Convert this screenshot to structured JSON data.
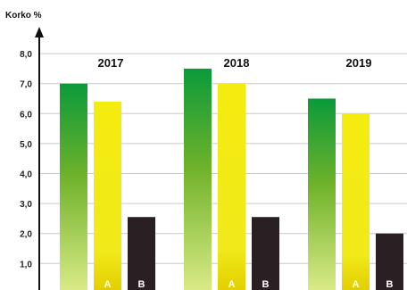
{
  "chart_data": {
    "type": "bar",
    "ylabel": "Korko %",
    "ylim": [
      0,
      8.0
    ],
    "yticks": [
      "1,0",
      "2,0",
      "3,0",
      "4,0",
      "5,0",
      "6,0",
      "7,0",
      "8,0"
    ],
    "grid": true,
    "categories": [
      "2017",
      "2018",
      "2019"
    ],
    "series": [
      {
        "name": "",
        "label": "",
        "color": "#3a9a2b",
        "values": [
          7.0,
          7.5,
          6.5
        ]
      },
      {
        "name": "A",
        "label": "A",
        "color": "#e7dd00",
        "values": [
          6.4,
          7.0,
          6.0
        ]
      },
      {
        "name": "B",
        "label": "B",
        "color": "#2a1f22",
        "values": [
          2.55,
          2.55,
          2.0
        ]
      }
    ]
  }
}
